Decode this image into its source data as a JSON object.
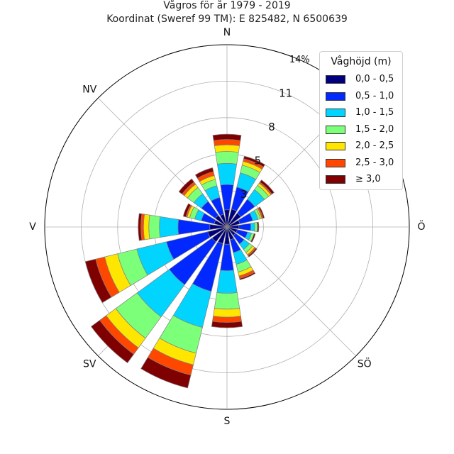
{
  "title": "Vågros för år 1979 - 2019",
  "subtitle": "Koordinat (Sweref 99 TM): E 825482, N 6500639",
  "chart_data": {
    "type": "windrose",
    "directions": [
      "N",
      "NNÖ",
      "NÖ",
      "ÖNÖ",
      "Ö",
      "ÖSÖ",
      "SÖ",
      "SSÖ",
      "S",
      "SSV",
      "SV",
      "VSV",
      "V",
      "VNV",
      "NV",
      "NNV"
    ],
    "direction_labels": [
      {
        "text": "N",
        "deg": 0
      },
      {
        "text": "NÖ",
        "deg": 45
      },
      {
        "text": "Ö",
        "deg": 90
      },
      {
        "text": "SÖ",
        "deg": 135
      },
      {
        "text": "S",
        "deg": 180
      },
      {
        "text": "SV",
        "deg": 225
      },
      {
        "text": "V",
        "deg": 270
      },
      {
        "text": "NV",
        "deg": 315
      }
    ],
    "radial_ticks": [
      "3",
      "5",
      "8",
      "11",
      "14%"
    ],
    "radial_tick_values": [
      2.75,
      5.5,
      8.25,
      11.0,
      13.75
    ],
    "r_max": 13.75,
    "legend_title": "Våghöjd (m)",
    "series": [
      {
        "name": "0,0 - 0,5",
        "color": "#00007f",
        "values": [
          1.3,
          1.4,
          1.3,
          1.0,
          0.9,
          0.8,
          0.8,
          1.0,
          1.3,
          1.3,
          1.4,
          1.5,
          1.3,
          1.0,
          1.1,
          1.0
        ]
      },
      {
        "name": "0,5 - 1,0",
        "color": "#0028ff",
        "values": [
          1.9,
          1.7,
          1.3,
          1.0,
          0.9,
          0.8,
          0.8,
          1.0,
          2.0,
          3.7,
          4.0,
          3.2,
          2.4,
          1.0,
          1.3,
          1.3
        ]
      },
      {
        "name": "1,0 - 1,5",
        "color": "#00d4ff",
        "values": [
          1.6,
          1.1,
          0.9,
          0.4,
          0.3,
          0.3,
          0.5,
          0.9,
          1.7,
          2.8,
          3.0,
          2.3,
          1.4,
          0.5,
          0.7,
          0.9
        ]
      },
      {
        "name": "1,5 - 2,0",
        "color": "#7cff79",
        "values": [
          0.9,
          0.6,
          0.4,
          0.2,
          0.2,
          0.2,
          0.3,
          0.6,
          1.2,
          2.0,
          2.0,
          1.5,
          0.8,
          0.4,
          0.6,
          0.5
        ]
      },
      {
        "name": "2,0 - 2,5",
        "color": "#ffe600",
        "values": [
          0.5,
          0.3,
          0.2,
          0.1,
          0.0,
          0.0,
          0.2,
          0.3,
          0.6,
          0.9,
          0.9,
          1.0,
          0.4,
          0.2,
          0.3,
          0.3
        ]
      },
      {
        "name": "2,5 - 3,0",
        "color": "#ff4700",
        "values": [
          0.4,
          0.2,
          0.1,
          0.1,
          0.0,
          0.0,
          0.1,
          0.2,
          0.4,
          0.8,
          0.6,
          0.7,
          0.2,
          0.1,
          0.2,
          0.3
        ]
      },
      {
        "name": "≥ 3,0",
        "color": "#7f0000",
        "values": [
          0.4,
          0.2,
          0.2,
          0.1,
          0.1,
          0.1,
          0.1,
          0.1,
          0.4,
          1.0,
          0.8,
          0.8,
          0.2,
          0.2,
          0.3,
          0.3
        ]
      }
    ]
  }
}
